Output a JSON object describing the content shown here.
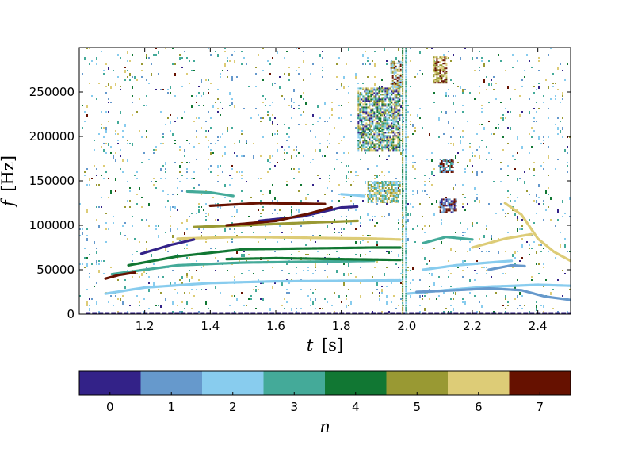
{
  "chart_data": {
    "type": "scatter",
    "subtype": "spectrogram-with-discrete-colorbar",
    "xlabel": "t [s]",
    "xlabel_parts": {
      "symbol": "t",
      "unit": "[s]"
    },
    "ylabel": "f [Hz]",
    "ylabel_parts": {
      "symbol": "f",
      "unit": "[Hz]"
    },
    "xlim": [
      1.0,
      2.5
    ],
    "ylim": [
      0,
      300000
    ],
    "x_ticks": [
      1.2,
      1.4,
      1.6,
      1.8,
      2.0,
      2.2,
      2.4
    ],
    "x_tick_labels": [
      "1.2",
      "1.4",
      "1.6",
      "1.8",
      "2.0",
      "2.2",
      "2.4"
    ],
    "y_ticks": [
      0,
      50000,
      100000,
      150000,
      200000,
      250000
    ],
    "y_tick_labels": [
      "0",
      "50000",
      "100000",
      "150000",
      "200000",
      "250000"
    ],
    "grid": false,
    "legend": "colorbar-bottom",
    "colorbar": {
      "label": "n",
      "categories": [
        "0",
        "1",
        "2",
        "3",
        "4",
        "5",
        "6",
        "7"
      ],
      "colors": [
        "#332288",
        "#6699CC",
        "#88CCEE",
        "#44AA99",
        "#117733",
        "#999933",
        "#DDCC77",
        "#661100"
      ]
    },
    "tracks": [
      {
        "n": 2,
        "points": [
          [
            1.08,
            23000
          ],
          [
            1.2,
            30000
          ],
          [
            1.4,
            35000
          ],
          [
            1.6,
            37000
          ],
          [
            1.8,
            37500
          ],
          [
            1.98,
            38000
          ]
        ]
      },
      {
        "n": 3,
        "points": [
          [
            1.1,
            45000
          ],
          [
            1.3,
            55000
          ],
          [
            1.5,
            58000
          ],
          [
            1.7,
            59000
          ],
          [
            1.9,
            60000
          ]
        ]
      },
      {
        "n": 4,
        "points": [
          [
            1.15,
            55000
          ],
          [
            1.3,
            65000
          ],
          [
            1.5,
            73000
          ],
          [
            1.7,
            74000
          ],
          [
            1.9,
            75000
          ],
          [
            1.98,
            75000
          ]
        ]
      },
      {
        "n": 4,
        "points": [
          [
            1.45,
            62000
          ],
          [
            1.6,
            63000
          ],
          [
            1.8,
            62000
          ],
          [
            1.98,
            61000
          ]
        ]
      },
      {
        "n": 6,
        "points": [
          [
            1.3,
            85000
          ],
          [
            1.5,
            87000
          ],
          [
            1.7,
            86000
          ],
          [
            1.9,
            85000
          ],
          [
            1.98,
            84000
          ]
        ]
      },
      {
        "n": 5,
        "points": [
          [
            1.35,
            98000
          ],
          [
            1.5,
            100000
          ],
          [
            1.7,
            103000
          ],
          [
            1.85,
            105000
          ]
        ]
      },
      {
        "n": 0,
        "points": [
          [
            1.19,
            68000
          ],
          [
            1.28,
            78000
          ],
          [
            1.35,
            84000
          ]
        ]
      },
      {
        "n": 0,
        "points": [
          [
            1.55,
            105000
          ],
          [
            1.68,
            110000
          ],
          [
            1.8,
            120000
          ],
          [
            1.85,
            121000
          ]
        ]
      },
      {
        "n": 7,
        "points": [
          [
            1.45,
            100000
          ],
          [
            1.6,
            105000
          ],
          [
            1.7,
            113000
          ],
          [
            1.77,
            120000
          ]
        ]
      },
      {
        "n": 7,
        "points": [
          [
            1.4,
            122000
          ],
          [
            1.55,
            125000
          ],
          [
            1.75,
            124000
          ]
        ]
      },
      {
        "n": 7,
        "points": [
          [
            1.08,
            40000
          ],
          [
            1.12,
            44000
          ],
          [
            1.17,
            47000
          ]
        ]
      },
      {
        "n": 3,
        "points": [
          [
            1.33,
            138000
          ],
          [
            1.4,
            137000
          ],
          [
            1.47,
            133000
          ]
        ]
      },
      {
        "n": 2,
        "points": [
          [
            1.8,
            135000
          ],
          [
            1.87,
            133000
          ]
        ]
      },
      {
        "n": 2,
        "points": [
          [
            2.0,
            23000
          ],
          [
            2.15,
            28000
          ],
          [
            2.25,
            31000
          ],
          [
            2.33,
            32000
          ],
          [
            2.4,
            33000
          ],
          [
            2.5,
            32000
          ]
        ]
      },
      {
        "n": 1,
        "points": [
          [
            2.03,
            25000
          ],
          [
            2.15,
            27000
          ],
          [
            2.25,
            29000
          ],
          [
            2.35,
            27000
          ],
          [
            2.42,
            20000
          ],
          [
            2.5,
            16000
          ]
        ]
      },
      {
        "n": 2,
        "points": [
          [
            2.05,
            50000
          ],
          [
            2.15,
            55000
          ],
          [
            2.25,
            58000
          ],
          [
            2.32,
            60000
          ]
        ]
      },
      {
        "n": 3,
        "points": [
          [
            2.05,
            80000
          ],
          [
            2.12,
            87000
          ],
          [
            2.2,
            84000
          ]
        ]
      },
      {
        "n": 6,
        "points": [
          [
            2.3,
            125000
          ],
          [
            2.35,
            112000
          ],
          [
            2.4,
            85000
          ],
          [
            2.45,
            70000
          ],
          [
            2.5,
            60000
          ]
        ]
      },
      {
        "n": 6,
        "points": [
          [
            2.2,
            75000
          ],
          [
            2.3,
            85000
          ],
          [
            2.38,
            90000
          ]
        ]
      },
      {
        "n": 1,
        "points": [
          [
            2.25,
            50000
          ],
          [
            2.32,
            55000
          ],
          [
            2.36,
            54000
          ]
        ]
      }
    ],
    "patches": [
      {
        "x": [
          1.85,
          1.98
        ],
        "y": [
          185000,
          255000
        ],
        "mix": [
          5,
          3,
          6,
          2,
          4,
          0
        ]
      },
      {
        "x": [
          1.88,
          1.98
        ],
        "y": [
          125000,
          150000
        ],
        "mix": [
          5,
          3,
          6,
          2
        ]
      },
      {
        "x": [
          1.95,
          1.98
        ],
        "y": [
          255000,
          285000
        ],
        "mix": [
          7,
          5,
          6,
          2
        ]
      },
      {
        "x": [
          2.08,
          2.12
        ],
        "y": [
          260000,
          290000
        ],
        "mix": [
          7,
          5,
          6
        ]
      },
      {
        "x": [
          2.1,
          2.15
        ],
        "y": [
          115000,
          130000
        ],
        "mix": [
          7,
          0,
          1
        ]
      },
      {
        "x": [
          2.1,
          2.14
        ],
        "y": [
          160000,
          175000
        ],
        "mix": [
          7,
          3,
          1
        ]
      }
    ],
    "vertical_lines": [
      {
        "x": 1.985,
        "n": [
          5,
          3,
          4
        ]
      },
      {
        "x": 1.995,
        "n": [
          2,
          3
        ]
      }
    ],
    "baseline": {
      "y": 0,
      "n": 0,
      "x": [
        1.02,
        2.5
      ]
    },
    "noise_density": 0.62
  }
}
